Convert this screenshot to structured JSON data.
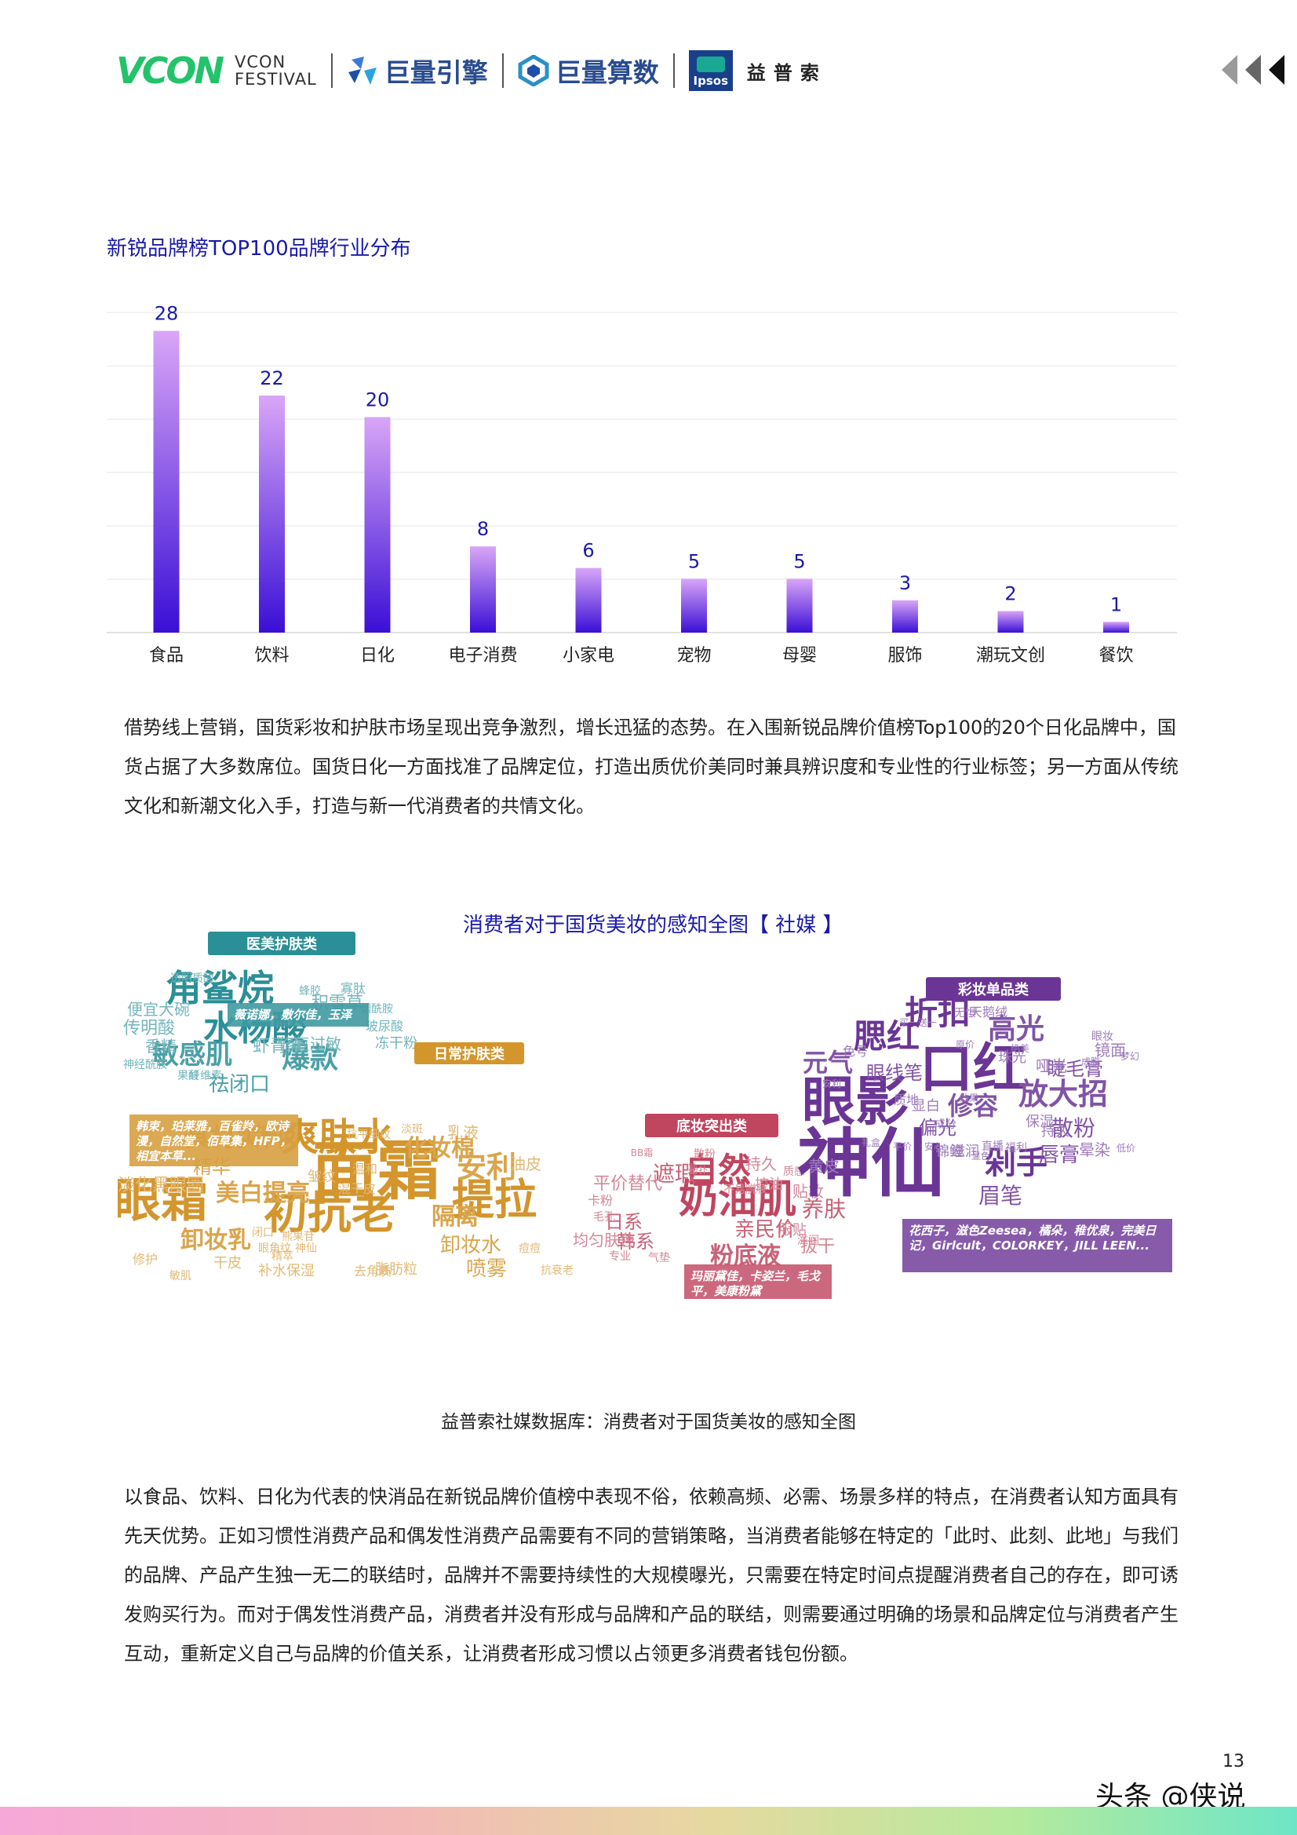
{
  "header": {
    "vcon_mark": "VCON",
    "vcon_line1": "VCON",
    "vcon_line2": "FESTIVAL",
    "brand1": "巨量引擎",
    "brand2": "巨量算数",
    "ipsos_label": "Ipsos",
    "ipsos_cn": "益普索"
  },
  "chart_title": "新锐品牌榜TOP100品牌行业分布",
  "chart_data": {
    "type": "bar",
    "title": "新锐品牌榜TOP100品牌行业分布",
    "categories": [
      "食品",
      "饮料",
      "日化",
      "电子消费",
      "小家电",
      "宠物",
      "母婴",
      "服饰",
      "潮玩文创",
      "餐饮"
    ],
    "values": [
      28,
      22,
      20,
      8,
      6,
      5,
      5,
      3,
      2,
      1
    ],
    "ylim": [
      0,
      30
    ],
    "grid": true,
    "colors": {
      "bar_top": "#d9a6f7",
      "bar_bottom": "#3a0fd6",
      "label": "#1a1aa8"
    }
  },
  "paragraph1": "借势线上营销，国货彩妆和护肤市场呈现出竞争激烈，增长迅猛的态势。在入围新锐品牌价值榜Top100的20个日化品牌中，国货占据了大多数席位。国货日化一方面找准了品牌定位，打造出质优价美同时兼具辨识度和专业性的行业标签；另一方面从传统文化和新潮文化入手，打造与新一代消费者的共情文化。",
  "wordcloud": {
    "title": "消费者对于国货美妆的感知全图【 社媒 】",
    "groups": [
      {
        "tag": "医美护肤类",
        "color": "#2a8f97",
        "words": [
          "角鲨烷",
          "水杨酸",
          "敏感肌",
          "爆款",
          "祛闭口",
          "虾青素",
          "修复过敏",
          "积雪草",
          "便宜大碗",
          "传明酸",
          "香精",
          "冻干粉",
          "寡肽",
          "透明质酸",
          "玻尿酸",
          "烟酰胺",
          "神经酰胺",
          "果酸",
          "纤维素",
          "蜂胶"
        ],
        "brands": "薇诺娜，敷尔佳，玉泽"
      },
      {
        "tag": "日常护肤类",
        "color": "#d3952c",
        "words": [
          "面霜",
          "爽肤水",
          "初抗老",
          "眼霜",
          "提拉",
          "安利",
          "化妆棉",
          "隔离",
          "卸妆乳",
          "美白提亮",
          "精华",
          "淡化黑眼圈",
          "卸妆水",
          "喷雾",
          "具材实料",
          "洁面",
          "乳液",
          "油皮",
          "补水保湿",
          "脂肪粒",
          "干皮",
          "修护",
          "皱纹",
          "温和",
          "混干皮",
          "去角质",
          "闭口",
          "眼角纹",
          "神仙",
          "精萃",
          "熊果苷",
          "抗衰老",
          "淡斑",
          "抗平细纹",
          "敏肌",
          "痘痘"
        ],
        "brands": "韩束，珀莱雅，百雀羚，欧诗漫，自然堂，佰草集，HFP，相宜本草..."
      },
      {
        "tag": "底妆突出类",
        "color": "#c0455f",
        "words": [
          "奶油肌",
          "自然",
          "遮瑕",
          "粉底液",
          "亲民价",
          "平价替代",
          "日系",
          "韩系",
          "养肤",
          "持久",
          "控油",
          "贴妆",
          "服贴",
          "均匀肤色",
          "卡粉",
          "拔干",
          "不易脱妆",
          "散粉",
          "粉扑",
          "BB霜",
          "滋润",
          "质感",
          "气垫",
          "毛孔",
          "专业"
        ],
        "brands": "玛丽黛佳，卡姿兰，毛戈平，美康粉黛"
      },
      {
        "tag": "彩妆单品类",
        "color": "#6b3596",
        "words": [
          "神仙",
          "口红",
          "眼影",
          "折扣",
          "腮红",
          "高光",
          "放大招",
          "剁手",
          "修容",
          "眉笔",
          "散粉",
          "唇膏",
          "偏光",
          "元气",
          "眼线笔",
          "睫毛膏",
          "哑光",
          "镜面",
          "珠光",
          "持久",
          "保湿",
          "晕染",
          "锦鲤",
          "滋润",
          "显白",
          "黄皮",
          "直播",
          "福利",
          "成分",
          "质地",
          "色号",
          "天鹅绒",
          "无惧",
          "眼妆",
          "梦幻",
          "成膜",
          "绝美",
          "原价",
          "买一送一",
          "效果",
          "礼盒",
          "平价",
          "低价",
          "显色",
          "安利",
          "安心"
        ],
        "brands": "花西子，滋色Zeesea，橘朵，稚优泉，完美日记，Girlcult，COLORKEY，JILL LEEN..."
      }
    ]
  },
  "caption": "益普索社媒数据库：消费者对于国货美妆的感知全图",
  "paragraph2": "以食品、饮料、日化为代表的快消品在新锐品牌价值榜中表现不俗，依赖高频、必需、场景多样的特点，在消费者认知方面具有先天优势。正如习惯性消费产品和偶发性消费产品需要有不同的营销策略，当消费者能够在特定的「此时、此刻、此地」与我们的品牌、产品产生独一无二的联结时，品牌并不需要持续性的大规模曝光，只需要在特定时间点提醒消费者自己的存在，即可诱发购买行为。而对于偶发性消费产品，消费者并没有形成与品牌和产品的联结，则需要通过明确的场景和品牌定位与消费者产生互动，重新定义自己与品牌的价值关系，让消费者形成习惯以占领更多消费者钱包份额。",
  "page_number": "13",
  "watermark": "头条 @侠说"
}
